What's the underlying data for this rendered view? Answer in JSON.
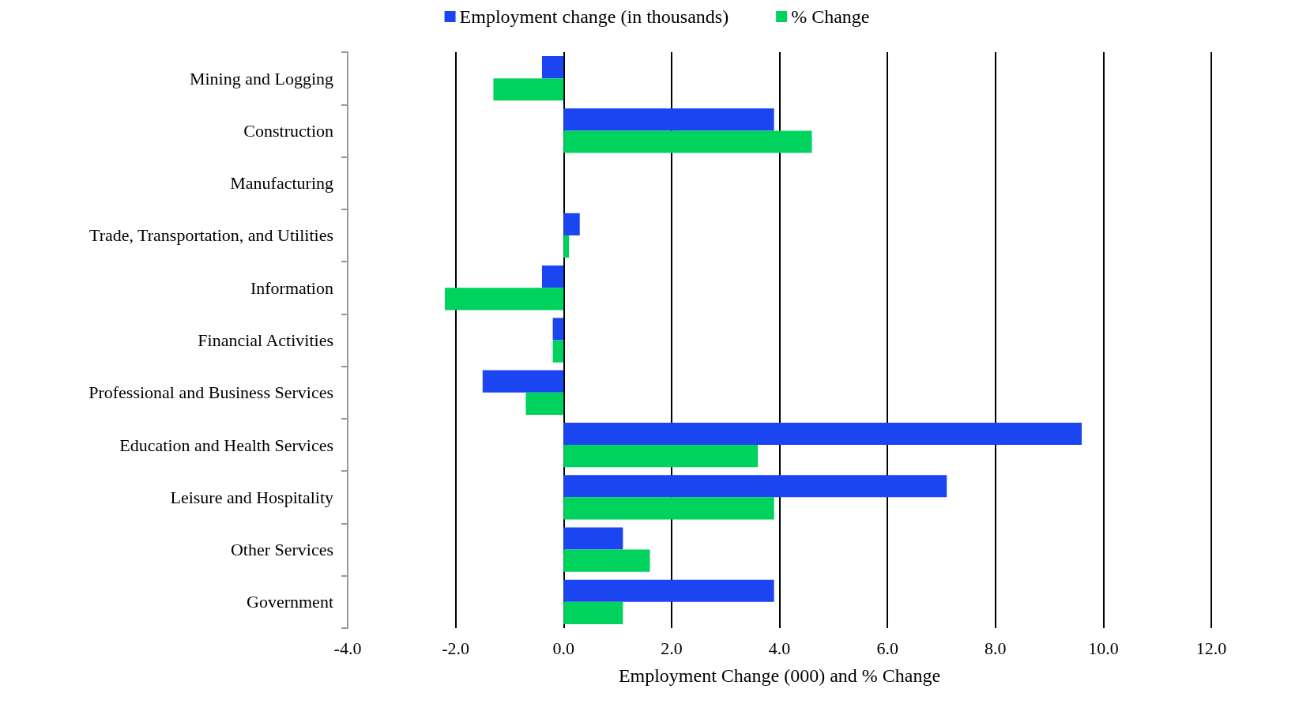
{
  "chart_data": {
    "type": "bar",
    "orientation": "horizontal",
    "xlabel": "Employment Change (000) and % Change",
    "categories": [
      "Mining and Logging",
      "Construction",
      "Manufacturing",
      "Trade, Transportation, and Utilities",
      "Information",
      "Financial Activities",
      "Professional and Business Services",
      "Education and Health Services",
      "Leisure and Hospitality",
      "Other Services",
      "Government"
    ],
    "series": [
      {
        "name": "Employment change (in thousands)",
        "color": "#1a45f0",
        "values": [
          -0.4,
          3.9,
          0,
          0.3,
          -0.4,
          -0.2,
          -1.5,
          9.6,
          7.1,
          1.1,
          3.9
        ]
      },
      {
        "name": "% Change",
        "color": "#00d25e",
        "values": [
          -1.3,
          4.6,
          0,
          0.1,
          -2.2,
          -0.2,
          -0.7,
          3.6,
          3.9,
          1.6,
          1.1
        ]
      }
    ],
    "xlim": [
      -4,
      12
    ],
    "xticks": [
      {
        "value": -4,
        "label": "-4.0"
      },
      {
        "value": -2,
        "label": "-2.0"
      },
      {
        "value": 0,
        "label": "0.0"
      },
      {
        "value": 2,
        "label": "2.0"
      },
      {
        "value": 4,
        "label": "4.0"
      },
      {
        "value": 6,
        "label": "6.0"
      },
      {
        "value": 8,
        "label": "8.0"
      },
      {
        "value": 10,
        "label": "10.0"
      },
      {
        "value": 12,
        "label": "12.0"
      }
    ],
    "grid": "x",
    "legend": "top"
  }
}
